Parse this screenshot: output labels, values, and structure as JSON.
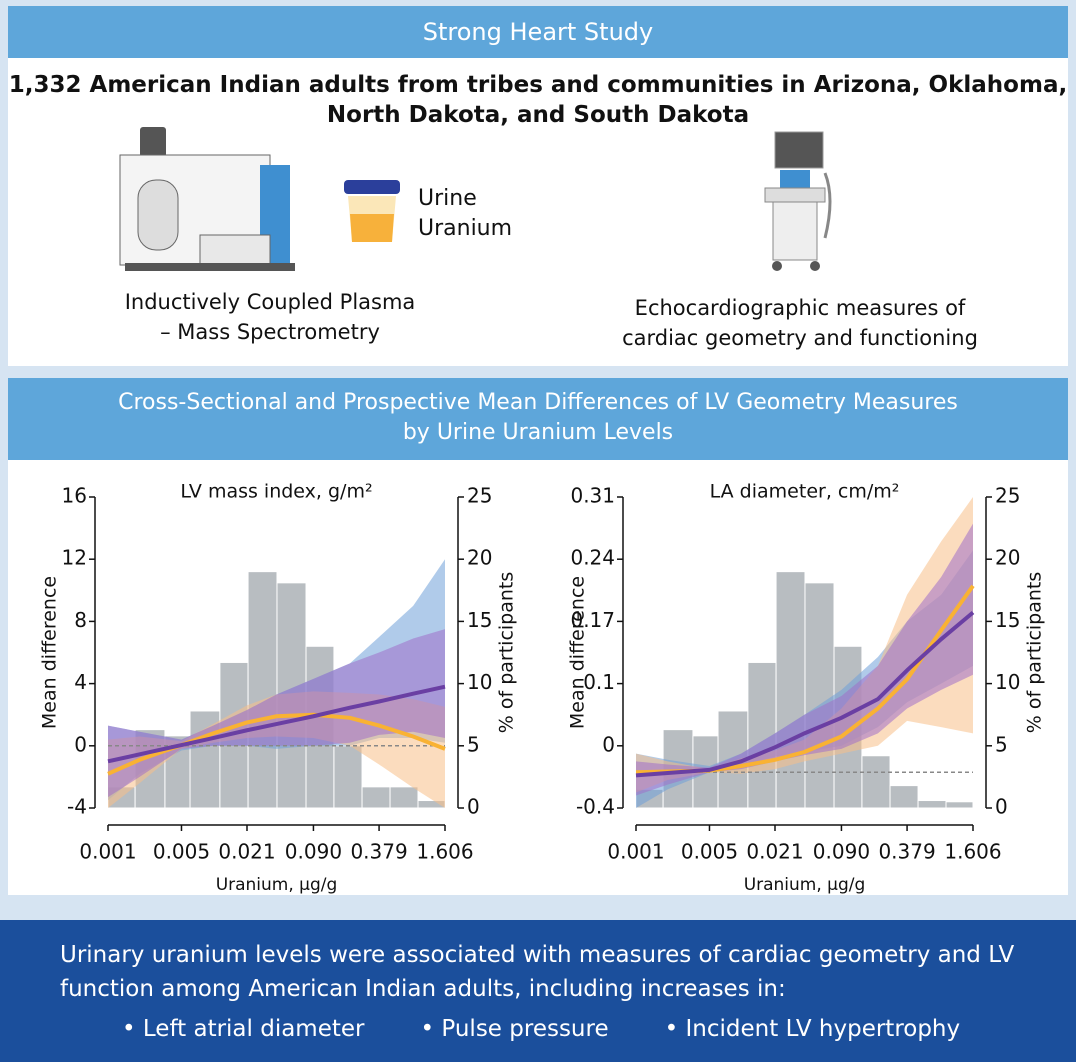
{
  "header": {
    "title": "Strong Heart Study"
  },
  "population": {
    "lines": [
      "1,332 American Indian adults from tribes and communities in Arizona, Oklahoma,",
      "North Dakota, and South Dakota"
    ]
  },
  "sample": {
    "lines": [
      "Urine",
      "Uranium"
    ]
  },
  "method_left": {
    "lines": [
      "Inductively Coupled Plasma",
      "– Mass Spectrometry"
    ]
  },
  "method_right": {
    "lines": [
      "Echocardiographic measures of",
      "cardiac geometry and functioning"
    ]
  },
  "section": {
    "lines": [
      "Cross-Sectional and Prospective Mean Differences of LV Geometry Measures",
      "by Urine Uranium Levels"
    ]
  },
  "chart_data": [
    {
      "type": "line",
      "title": "LV mass index, g/m²",
      "xlabel": "Uranium, μg/g",
      "ylabel": "Mean difference",
      "y2label": "% of participants",
      "xscale": "log",
      "xlim": [
        0.001,
        1.606
      ],
      "xticks": [
        0.001,
        0.005,
        0.021,
        {
          "value": 0.09,
          "label": "0.090"
        },
        0.379,
        1.606
      ],
      "ylim": [
        -4,
        16
      ],
      "yticks": [
        -4,
        0,
        4,
        8,
        12,
        16
      ],
      "y2lim": [
        0,
        25
      ],
      "y2ticks": [
        0,
        5,
        10,
        15,
        20,
        25
      ],
      "refline": 0,
      "histogram": {
        "axis": "y2",
        "color": "#b8bdc1",
        "bins": [
          0.001,
          0.00181,
          0.00348,
          0.00603,
          0.0116,
          0.0215,
          0.0405,
          0.0765,
          0.141,
          0.261,
          0.482,
          0.889,
          1.606
        ],
        "values": [
          1.7,
          6.3,
          5.8,
          7.8,
          11.7,
          19.0,
          18.1,
          13.0,
          5.0,
          1.7,
          1.7,
          0.6
        ]
      },
      "x": [
        0.001,
        0.002,
        0.005,
        0.01,
        0.021,
        0.04,
        0.09,
        0.2,
        0.379,
        0.8,
        1.606
      ],
      "bands": [
        {
          "color": "#6fa0d8",
          "lower": [
            -3.5,
            -1.8,
            -0.3,
            0,
            0,
            -0.2,
            0,
            0,
            0.5,
            0.5,
            0.2
          ],
          "upper": [
            1.3,
            0.9,
            0.4,
            1.3,
            2.3,
            3.3,
            4.3,
            5.3,
            7,
            9,
            12
          ]
        },
        {
          "color": "#f7c088",
          "lower": [
            -4,
            -2.4,
            -0.2,
            0.2,
            0.5,
            0.6,
            0.5,
            0,
            -1.2,
            -2.7,
            -4
          ],
          "upper": [
            0.4,
            0.6,
            0.3,
            1.4,
            2.6,
            3.3,
            3.5,
            3.4,
            3.3,
            3.0,
            2.5
          ]
        },
        {
          "color": "#a070c8",
          "lower": [
            -3.3,
            -2,
            -0.2,
            0,
            0,
            0,
            0,
            0.2,
            0.7,
            0.9,
            0.5
          ],
          "upper": [
            1.3,
            0.9,
            0.4,
            1.3,
            2.3,
            3.3,
            4.3,
            5.3,
            6,
            6.9,
            7.5
          ]
        }
      ],
      "series": [
        {
          "color": "#f9b233",
          "values": [
            -1.8,
            -0.9,
            0.05,
            0.8,
            1.5,
            1.9,
            2.0,
            1.8,
            1.3,
            0.6,
            -0.2
          ]
        },
        {
          "color": "#6a3fa3",
          "values": [
            -1,
            -0.55,
            0.05,
            0.5,
            1.0,
            1.4,
            1.9,
            2.45,
            2.85,
            3.35,
            3.8
          ]
        }
      ]
    },
    {
      "type": "line",
      "title": "LA diameter, cm/m²",
      "xlabel": "Uranium, μg/g",
      "ylabel": "Mean difference",
      "y2label": "% of participants",
      "xscale": "log",
      "xlim": [
        0.001,
        1.606
      ],
      "xticks": [
        0.001,
        0.005,
        0.021,
        {
          "value": 0.09,
          "label": "0.090"
        },
        0.379,
        1.606
      ],
      "ylim": [
        -0.4,
        0.31
      ],
      "yticks": [
        -0.4,
        0,
        0.1,
        0.17,
        0.24,
        0.31
      ],
      "y2lim": [
        0,
        25
      ],
      "y2ticks": [
        0,
        5,
        10,
        15,
        20,
        25
      ],
      "refline": -0.17,
      "histogram": {
        "axis": "y2",
        "color": "#b8bdc1",
        "bins": [
          0.001,
          0.00181,
          0.00348,
          0.00603,
          0.0116,
          0.0215,
          0.0405,
          0.0765,
          0.141,
          0.261,
          0.482,
          0.889,
          1.606
        ],
        "values": [
          1.5,
          6.3,
          5.8,
          7.8,
          11.7,
          19.0,
          18.1,
          13.0,
          4.2,
          1.8,
          0.6,
          0.5
        ]
      },
      "x": [
        0.001,
        0.002,
        0.005,
        0.01,
        0.021,
        0.04,
        0.09,
        0.2,
        0.379,
        0.8,
        1.606
      ],
      "bands": [
        {
          "color": "#6fa0d8",
          "lower": [
            -0.4,
            -0.28,
            -0.17,
            -0.13,
            -0.07,
            -0.04,
            0,
            0.03,
            0.07,
            0.1,
            0.12
          ],
          "upper": [
            -0.05,
            -0.09,
            -0.13,
            -0.05,
            0.02,
            0.05,
            0.09,
            0.13,
            0.17,
            0.2,
            0.25
          ]
        },
        {
          "color": "#f7c088",
          "lower": [
            -0.3,
            -0.22,
            -0.17,
            -0.18,
            -0.15,
            -0.1,
            -0.05,
            0,
            0.04,
            0.03,
            0.02
          ],
          "upper": [
            -0.05,
            -0.1,
            -0.15,
            -0.08,
            -0.03,
            0.01,
            0.06,
            0.12,
            0.2,
            0.26,
            0.31
          ]
        },
        {
          "color": "#a070c8",
          "lower": [
            -0.32,
            -0.25,
            -0.17,
            -0.15,
            -0.1,
            -0.06,
            -0.02,
            0.02,
            0.06,
            0.09,
            0.11
          ],
          "upper": [
            -0.1,
            -0.12,
            -0.14,
            -0.05,
            0.02,
            0.05,
            0.08,
            0.12,
            0.17,
            0.22,
            0.28
          ]
        }
      ],
      "series": [
        {
          "color": "#f9b233",
          "values": [
            -0.17,
            -0.165,
            -0.16,
            -0.13,
            -0.09,
            -0.04,
            0.015,
            0.06,
            0.105,
            0.16,
            0.21
          ]
        },
        {
          "color": "#6a3fa3",
          "values": [
            -0.19,
            -0.175,
            -0.155,
            -0.1,
            -0.01,
            0.02,
            0.045,
            0.075,
            0.115,
            0.15,
            0.18
          ]
        }
      ]
    }
  ],
  "conclusion": {
    "lines": [
      "Urinary uranium levels were associated with measures of cardiac geometry and LV",
      "function among American Indian adults, including increases in:"
    ],
    "bullets": [
      "Left atrial diameter",
      "Pulse pressure",
      "Incident LV hypertrophy"
    ]
  }
}
